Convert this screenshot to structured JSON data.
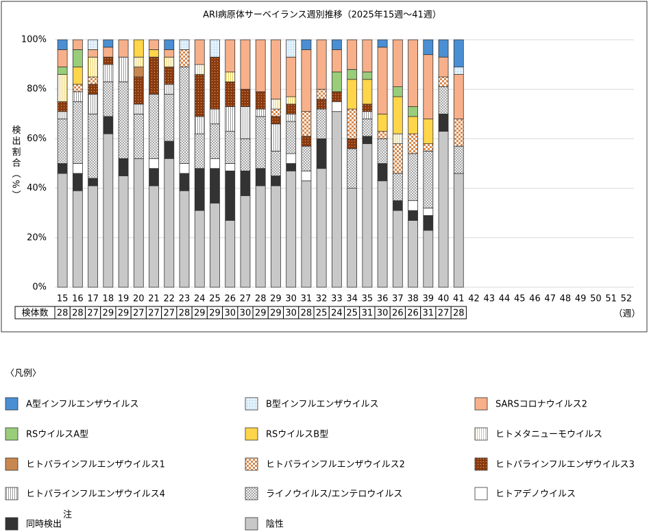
{
  "chart_data": {
    "type": "stacked-bar",
    "title": "ARI病原体サーベイランス週別推移（2025年15週～41週）",
    "ylabel": "検出割合（%）",
    "xunit": "（週）",
    "legend_title": "〈凡例〉",
    "categories": [
      "15",
      "16",
      "17",
      "18",
      "19",
      "20",
      "21",
      "22",
      "23",
      "24",
      "25",
      "26",
      "27",
      "28",
      "29",
      "30",
      "31",
      "32",
      "33",
      "34",
      "35",
      "36",
      "37",
      "38",
      "39",
      "40",
      "41",
      "42",
      "43",
      "44",
      "45",
      "46",
      "47",
      "48",
      "49",
      "50",
      "51",
      "52"
    ],
    "ylim": [
      0,
      100
    ],
    "yticks": [
      {
        "value": 0,
        "label": "0%"
      },
      {
        "value": 20,
        "label": "20%"
      },
      {
        "value": 40,
        "label": "40%"
      },
      {
        "value": 60,
        "label": "60%"
      },
      {
        "value": 80,
        "label": "80%"
      },
      {
        "value": 100,
        "label": "100%"
      }
    ],
    "grid": true,
    "sample_counts": {
      "label": "検体数",
      "values": [
        28,
        28,
        27,
        29,
        29,
        27,
        27,
        27,
        28,
        29,
        29,
        30,
        30,
        29,
        29,
        30,
        28,
        25,
        24,
        25,
        31,
        30,
        26,
        26,
        31,
        27,
        28
      ]
    },
    "series": [
      {
        "name": "A型インフルエンザウイルス",
        "color": "#4a8fd4",
        "pattern": "solid",
        "values": [
          4,
          0,
          0,
          3,
          0,
          0,
          0,
          4,
          0,
          0,
          0,
          0,
          0,
          0,
          0,
          0,
          4,
          0,
          4,
          0,
          0,
          3,
          0,
          0,
          6,
          7,
          11,
          null,
          null,
          null,
          null,
          null,
          null,
          null,
          null,
          null,
          null,
          null
        ]
      },
      {
        "name": "B型インフルエンザウイルス",
        "color": "#8cc4ec",
        "pattern": "grid",
        "values": [
          0,
          0,
          4,
          0,
          0,
          0,
          0,
          0,
          4,
          0,
          7,
          0,
          0,
          0,
          0,
          7,
          0,
          0,
          0,
          0,
          0,
          0,
          0,
          0,
          0,
          0,
          3,
          null,
          null,
          null,
          null,
          null,
          null,
          null,
          null,
          null,
          null,
          null
        ]
      },
      {
        "name": "SARSコロナウイルス2",
        "color": "#f7b08a",
        "pattern": "solid",
        "values": [
          7,
          4,
          3,
          4,
          7,
          0,
          4,
          3,
          0,
          10,
          0,
          13,
          20,
          21,
          24,
          16,
          25,
          20,
          9,
          12,
          13,
          27,
          19,
          27,
          26,
          8,
          18,
          null,
          null,
          null,
          null,
          null,
          null,
          null,
          null,
          null,
          null,
          null
        ]
      },
      {
        "name": "RSウイルスA型",
        "color": "#9acd7a",
        "pattern": "solid",
        "values": [
          3,
          7,
          0,
          0,
          0,
          0,
          0,
          0,
          0,
          0,
          0,
          0,
          0,
          0,
          0,
          0,
          0,
          0,
          8,
          4,
          3,
          0,
          4,
          4,
          0,
          0,
          0,
          null,
          null,
          null,
          null,
          null,
          null,
          null,
          null,
          null,
          null,
          null
        ]
      },
      {
        "name": "RSウイルスB型",
        "color": "#ffd54a",
        "pattern": "solid",
        "values": [
          0,
          7,
          0,
          0,
          0,
          7,
          3,
          0,
          0,
          0,
          0,
          0,
          0,
          0,
          0,
          0,
          0,
          0,
          0,
          12,
          10,
          7,
          15,
          7,
          10,
          0,
          0,
          null,
          null,
          null,
          null,
          null,
          null,
          null,
          null,
          null,
          null,
          null
        ]
      },
      {
        "name": "ヒトメタニューモウイルス",
        "color": "#e8c840",
        "pattern": "vlines",
        "values": [
          11,
          0,
          8,
          0,
          0,
          4,
          0,
          4,
          0,
          4,
          0,
          4,
          0,
          0,
          4,
          3,
          0,
          0,
          0,
          0,
          0,
          0,
          4,
          0,
          0,
          0,
          0,
          null,
          null,
          null,
          null,
          null,
          null,
          null,
          null,
          null,
          null,
          null
        ]
      },
      {
        "name": "ヒトパラインフルエンザウイルス1",
        "color": "#c8874f",
        "pattern": "solid",
        "values": [
          0,
          0,
          0,
          0,
          0,
          4,
          0,
          0,
          0,
          0,
          0,
          0,
          0,
          0,
          0,
          0,
          0,
          0,
          0,
          0,
          0,
          0,
          0,
          0,
          0,
          0,
          0,
          null,
          null,
          null,
          null,
          null,
          null,
          null,
          null,
          null,
          null,
          null
        ]
      },
      {
        "name": "ヒトパラインフルエンザウイルス2",
        "color": "#d9884a",
        "pattern": "checker",
        "values": [
          0,
          3,
          3,
          0,
          0,
          0,
          0,
          0,
          7,
          0,
          0,
          0,
          0,
          0,
          3,
          0,
          10,
          4,
          0,
          12,
          0,
          3,
          12,
          8,
          3,
          4,
          11,
          null,
          null,
          null,
          null,
          null,
          null,
          null,
          null,
          null,
          null,
          null
        ]
      },
      {
        "name": "ヒトパラインフルエンザウイルス3",
        "color": "#8b3a0f",
        "pattern": "dots",
        "values": [
          4,
          0,
          4,
          3,
          0,
          11,
          15,
          7,
          0,
          17,
          21,
          10,
          7,
          7,
          3,
          4,
          4,
          4,
          4,
          4,
          3,
          0,
          0,
          0,
          0,
          0,
          0,
          null,
          null,
          null,
          null,
          null,
          null,
          null,
          null,
          null,
          null,
          null
        ]
      },
      {
        "name": "ヒトパラインフルエンザウイルス4",
        "color": "#999999",
        "pattern": "vlines",
        "values": [
          3,
          4,
          8,
          7,
          10,
          4,
          0,
          4,
          0,
          7,
          6,
          10,
          13,
          3,
          11,
          3,
          0,
          0,
          0,
          0,
          3,
          0,
          0,
          0,
          0,
          0,
          0,
          null,
          null,
          null,
          null,
          null,
          null,
          null,
          null,
          null,
          null,
          null
        ]
      },
      {
        "name": "ライノウイルス/エンテロウイルス",
        "color": "#888888",
        "pattern": "cross",
        "values": [
          18,
          25,
          26,
          14,
          31,
          18,
          26,
          19,
          39,
          14,
          14,
          13,
          13,
          21,
          10,
          13,
          10,
          12,
          0,
          16,
          7,
          10,
          11,
          19,
          23,
          11,
          11,
          null,
          null,
          null,
          null,
          null,
          null,
          null,
          null,
          null,
          null,
          null
        ]
      },
      {
        "name": "ヒトアデノウイルス",
        "color": "#ffffff",
        "pattern": "solid",
        "values": [
          0,
          4,
          0,
          0,
          0,
          0,
          4,
          0,
          4,
          0,
          4,
          3,
          0,
          0,
          0,
          4,
          4,
          0,
          4,
          0,
          0,
          0,
          0,
          4,
          3,
          0,
          0,
          null,
          null,
          null,
          null,
          null,
          null,
          null,
          null,
          null,
          null,
          null
        ]
      },
      {
        "name": "同時検出",
        "note": "注",
        "color": "#333333",
        "pattern": "solid",
        "values": [
          4,
          7,
          3,
          7,
          7,
          0,
          7,
          7,
          7,
          17,
          14,
          20,
          10,
          7,
          4,
          3,
          0,
          12,
          0,
          0,
          3,
          7,
          4,
          4,
          6,
          7,
          0,
          null,
          null,
          null,
          null,
          null,
          null,
          null,
          null,
          null,
          null,
          null
        ]
      },
      {
        "name": "陰性",
        "color": "#c8c8c8",
        "pattern": "solid",
        "values": [
          46,
          39,
          41,
          62,
          45,
          52,
          41,
          52,
          39,
          31,
          34,
          27,
          37,
          41,
          41,
          47,
          43,
          48,
          71,
          40,
          58,
          43,
          31,
          27,
          23,
          63,
          46,
          null,
          null,
          null,
          null,
          null,
          null,
          null,
          null,
          null,
          null,
          null
        ]
      }
    ]
  }
}
